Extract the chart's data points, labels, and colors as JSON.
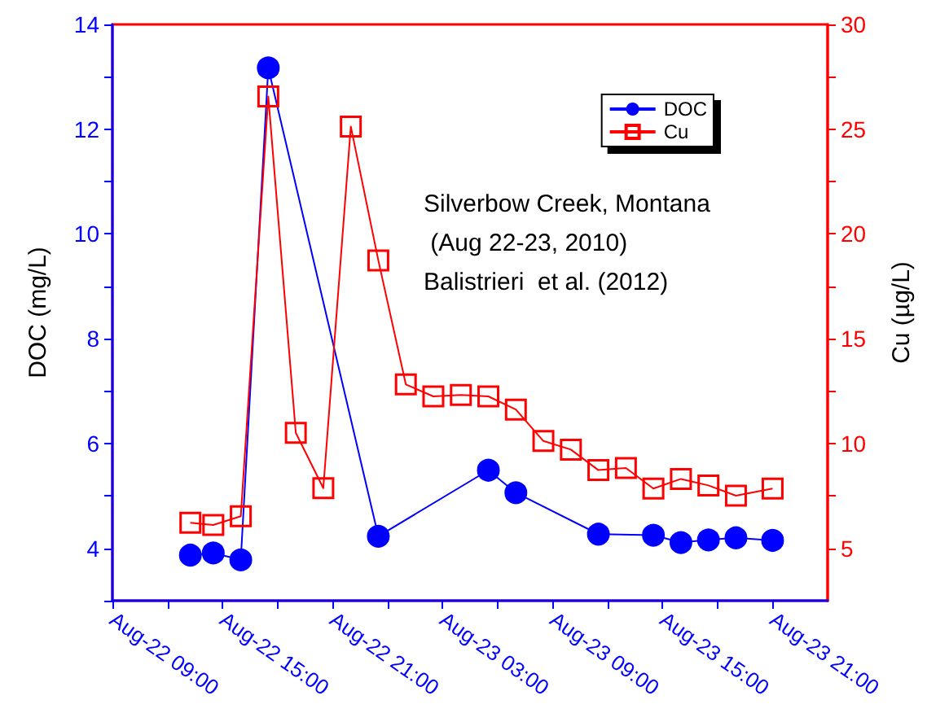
{
  "chart_data": {
    "type": "line",
    "xlim": [
      "2010-08-22T09:00",
      "2010-08-24T00:00"
    ],
    "xticks": [
      {
        "value": "2010-08-22T09:00",
        "label": "Aug-22 09:00"
      },
      {
        "value": "2010-08-22T12:00",
        "label": null
      },
      {
        "value": "2010-08-22T15:00",
        "label": "Aug-22 15:00"
      },
      {
        "value": "2010-08-22T18:00",
        "label": null
      },
      {
        "value": "2010-08-22T21:00",
        "label": "Aug-22 21:00"
      },
      {
        "value": "2010-08-23T00:00",
        "label": null
      },
      {
        "value": "2010-08-23T03:00",
        "label": "Aug-23 03:00"
      },
      {
        "value": "2010-08-23T06:00",
        "label": null
      },
      {
        "value": "2010-08-23T09:00",
        "label": "Aug-23 09:00"
      },
      {
        "value": "2010-08-23T12:00",
        "label": null
      },
      {
        "value": "2010-08-23T15:00",
        "label": "Aug-23 15:00"
      },
      {
        "value": "2010-08-23T18:00",
        "label": null
      },
      {
        "value": "2010-08-23T21:00",
        "label": "Aug-23 21:00"
      }
    ],
    "ylabel": "DOC (mg/L)",
    "y2label": "Cu (µg/L)",
    "ylim": [
      3,
      14
    ],
    "yticks": [
      {
        "value": 3,
        "label": null
      },
      4,
      {
        "value": 5,
        "label": null
      },
      6,
      {
        "value": 7,
        "label": null
      },
      8,
      {
        "value": 9,
        "label": null
      },
      10,
      {
        "value": 11,
        "label": null
      },
      12,
      {
        "value": 13,
        "label": null
      },
      14
    ],
    "y2lim": [
      2.5,
      30
    ],
    "y2ticks": [
      5,
      {
        "value": 7.5,
        "label": null
      },
      10,
      {
        "value": 12.5,
        "label": null
      },
      15,
      {
        "value": 17.5,
        "label": null
      },
      20,
      {
        "value": 22.5,
        "label": null
      },
      25,
      {
        "value": 27.5,
        "label": null
      },
      30
    ],
    "grid": false,
    "legend": "top right",
    "line_style": "solid",
    "annotations": [
      "Silverbow Creek, Montana",
      " (Aug 22-23, 2010)",
      "Balistrieri  et al. (2012)"
    ],
    "series": [
      {
        "name": "DOC",
        "color": "#0000ff",
        "marker": "circle",
        "x": [
          "2010-08-22T13:15",
          "2010-08-22T14:30",
          "2010-08-22T16:00",
          "2010-08-22T17:30",
          "2010-08-22T23:30",
          "2010-08-23T05:30",
          "2010-08-23T07:00",
          "2010-08-23T11:30",
          "2010-08-23T14:30",
          "2010-08-23T16:00",
          "2010-08-23T17:30",
          "2010-08-23T19:00",
          "2010-08-23T21:00"
        ],
        "values": [
          3.87,
          3.91,
          3.78,
          13.17,
          4.23,
          5.49,
          5.06,
          4.27,
          4.25,
          4.11,
          4.16,
          4.2,
          4.15
        ]
      },
      {
        "name": "Cu",
        "color": "#ff0000",
        "marker": "square",
        "axis": "y2",
        "x": [
          "2010-08-22T13:15",
          "2010-08-22T14:30",
          "2010-08-22T16:00",
          "2010-08-22T17:30",
          "2010-08-22T19:00",
          "2010-08-22T20:30",
          "2010-08-22T22:00",
          "2010-08-22T23:30",
          "2010-08-23T01:00",
          "2010-08-23T02:30",
          "2010-08-23T04:00",
          "2010-08-23T05:30",
          "2010-08-23T07:00",
          "2010-08-23T08:30",
          "2010-08-23T10:00",
          "2010-08-23T11:30",
          "2010-08-23T13:00",
          "2010-08-23T14:30",
          "2010-08-23T16:00",
          "2010-08-23T17:30",
          "2010-08-23T19:00",
          "2010-08-23T21:00"
        ],
        "values": [
          6.22,
          6.11,
          6.53,
          26.56,
          10.51,
          7.87,
          25.13,
          18.74,
          12.82,
          12.25,
          12.32,
          12.25,
          11.62,
          10.12,
          9.71,
          8.73,
          8.83,
          7.85,
          8.31,
          8.0,
          7.51,
          7.85
        ]
      }
    ]
  }
}
